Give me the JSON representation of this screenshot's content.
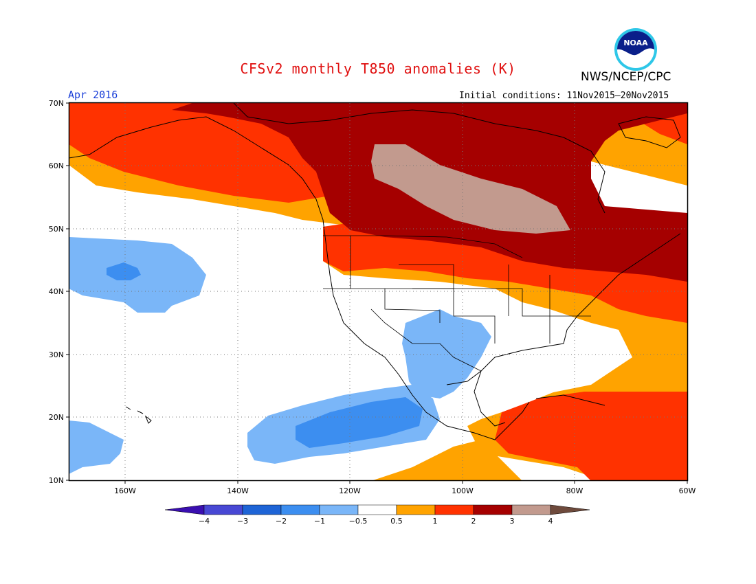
{
  "header": {
    "title": "CFSv2 monthly T850 anomalies (K)",
    "agency": "NWS/NCEP/CPC",
    "month": "Apr 2016",
    "initial_conditions": "Initial conditions: 11Nov2015–20Nov2015",
    "logo_text": "NOAA"
  },
  "map": {
    "lat_labels": [
      "70N",
      "60N",
      "50N",
      "40N",
      "30N",
      "20N",
      "10N"
    ],
    "lon_labels": [
      "160W",
      "140W",
      "120W",
      "100W",
      "80W",
      "60W"
    ]
  },
  "legend": {
    "tick_labels": [
      "−4",
      "−3",
      "−2",
      "−1",
      "−0.5",
      "0.5",
      "1",
      "2",
      "3",
      "4"
    ],
    "colors": [
      "#3a0fb0",
      "#4848d4",
      "#1e64d6",
      "#3c8ef0",
      "#7ab6f8",
      "#ffffff",
      "#ffa300",
      "#ff3200",
      "#a50000",
      "#c29a8e",
      "#6e4a3c"
    ]
  }
}
